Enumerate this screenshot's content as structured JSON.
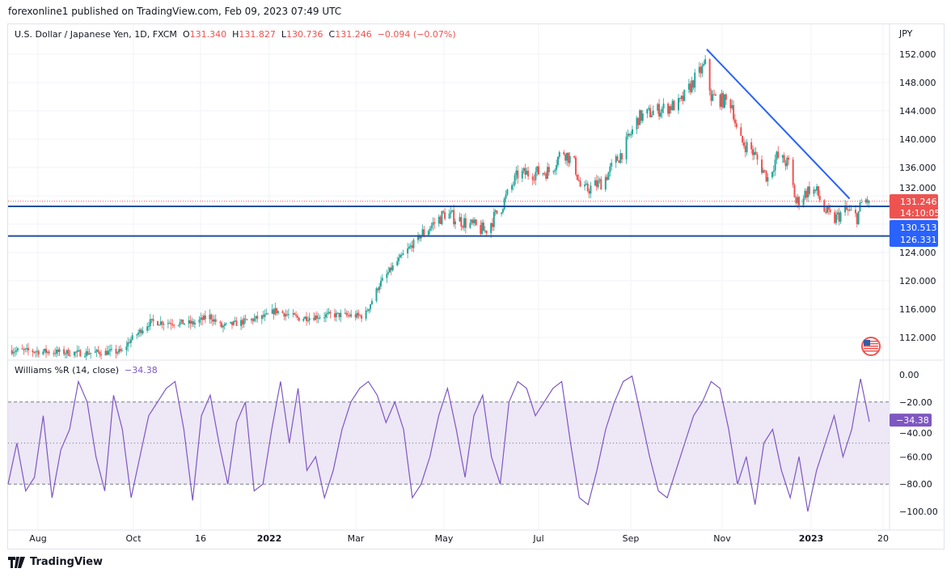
{
  "published": "forexonline1 published on TradingView.com, Feb 09, 2023 07:49 UTC",
  "symbol": {
    "name": "U.S. Dollar / Japanese Yen, 1D, FXCM",
    "o_label": "O",
    "o": "131.340",
    "h_label": "H",
    "h": "131.827",
    "l_label": "L",
    "l": "130.736",
    "c_label": "C",
    "c": "131.246",
    "change": "−0.094 (−0.07%)"
  },
  "currency": "JPY",
  "price_badges": {
    "last": "131.246",
    "countdown": "14:10:05",
    "line1": "130.513",
    "line2": "126.331"
  },
  "indicator": {
    "name": "Williams %R (14, close)",
    "value": "−34.38",
    "badge": "−34.38"
  },
  "footer": {
    "brand": "TradingView"
  },
  "colors": {
    "up": "#26a69a",
    "down": "#ef5350",
    "line": "#2962ff",
    "hline": "#1e4fa0",
    "wr": "#7e57c2",
    "band": "#ede7f6"
  },
  "chart_data": {
    "type": "candlestick",
    "y_axis_labels": [
      "152.000",
      "148.000",
      "144.000",
      "140.000",
      "136.000",
      "132.000",
      "124.000",
      "120.000",
      "116.000",
      "112.000"
    ],
    "ylim": [
      110,
      152.5
    ],
    "x_axis_labels": [
      "Aug",
      "Oct",
      "16",
      "2022",
      "Mar",
      "May",
      "Jul",
      "Sep",
      "Nov",
      "2023",
      "20"
    ],
    "horizontal_lines": [
      130.513,
      126.331
    ],
    "trendline": [
      [
        "2022-10-22",
        152.7
      ],
      [
        "2023-01-26",
        131.6
      ]
    ],
    "close_path": [
      [
        "2021-07-10",
        110.2
      ],
      [
        "2021-08-27",
        109.8
      ],
      [
        "2021-09-24",
        110
      ],
      [
        "2021-09-29",
        111.5
      ],
      [
        "2021-10-13",
        114.2
      ],
      [
        "2021-11-11",
        114
      ],
      [
        "2021-11-22",
        115
      ],
      [
        "2021-11-30",
        113.5
      ],
      [
        "2021-12-30",
        115
      ],
      [
        "2022-01-05",
        115.8
      ],
      [
        "2022-01-21",
        114.7
      ],
      [
        "2022-02-12",
        115.2
      ],
      [
        "2022-03-06",
        115
      ],
      [
        "2022-03-16",
        119.5
      ],
      [
        "2022-03-27",
        122.5
      ],
      [
        "2022-04-13",
        126.5
      ],
      [
        "2022-04-29",
        129.5
      ],
      [
        "2022-05-15",
        128
      ],
      [
        "2022-05-26",
        127
      ],
      [
        "2022-06-06",
        130.5
      ],
      [
        "2022-06-17",
        135
      ],
      [
        "2022-07-09",
        135.5
      ],
      [
        "2022-07-17",
        138.5
      ],
      [
        "2022-07-25",
        136.5
      ],
      [
        "2022-07-30",
        132.5
      ],
      [
        "2022-08-13",
        134
      ],
      [
        "2022-08-27",
        138.5
      ],
      [
        "2022-09-06",
        143
      ],
      [
        "2022-09-17",
        144
      ],
      [
        "2022-10-04",
        145
      ],
      [
        "2022-10-14",
        148.5
      ],
      [
        "2022-10-21",
        150.5
      ],
      [
        "2022-10-25",
        146
      ],
      [
        "2022-11-08",
        145
      ],
      [
        "2022-11-12",
        140
      ],
      [
        "2022-11-21",
        138.5
      ],
      [
        "2022-12-02",
        134.5
      ],
      [
        "2022-12-08",
        137.5
      ],
      [
        "2022-12-16",
        136.5
      ],
      [
        "2022-12-21",
        131
      ],
      [
        "2022-12-30",
        133
      ],
      [
        "2023-01-04",
        132.5
      ],
      [
        "2023-01-09",
        130
      ],
      [
        "2023-01-15",
        128.5
      ],
      [
        "2023-01-23",
        130
      ],
      [
        "2023-01-31",
        129
      ],
      [
        "2023-02-04",
        131.5
      ],
      [
        "2023-02-08",
        131.246
      ]
    ],
    "williams_r": {
      "ylim": [
        -100,
        0
      ],
      "y_axis_labels": [
        "0.00",
        "−20.00",
        "−40.00",
        "−60.00",
        "−80.00",
        "−100.00"
      ],
      "levels": [
        -20,
        -50,
        -80
      ],
      "values": [
        -80,
        -50,
        -85,
        -75,
        -30,
        -90,
        -55,
        -40,
        -5,
        -20,
        -60,
        -85,
        -15,
        -40,
        -90,
        -60,
        -30,
        -20,
        -10,
        -5,
        -40,
        -92,
        -30,
        -15,
        -50,
        -80,
        -35,
        -20,
        -85,
        -80,
        -40,
        -5,
        -50,
        -10,
        -70,
        -60,
        -90,
        -70,
        -40,
        -20,
        -10,
        -5,
        -15,
        -35,
        -20,
        -40,
        -90,
        -80,
        -60,
        -30,
        -10,
        -40,
        -75,
        -30,
        -15,
        -60,
        -80,
        -20,
        -5,
        -10,
        -30,
        -20,
        -10,
        -5,
        -50,
        -90,
        -95,
        -70,
        -40,
        -20,
        -5,
        -1,
        -30,
        -60,
        -85,
        -90,
        -70,
        -50,
        -30,
        -20,
        -5,
        -10,
        -40,
        -80,
        -60,
        -95,
        -50,
        -40,
        -70,
        -90,
        -60,
        -100,
        -70,
        -50,
        -30,
        -60,
        -40,
        -3,
        -34.38
      ]
    }
  }
}
